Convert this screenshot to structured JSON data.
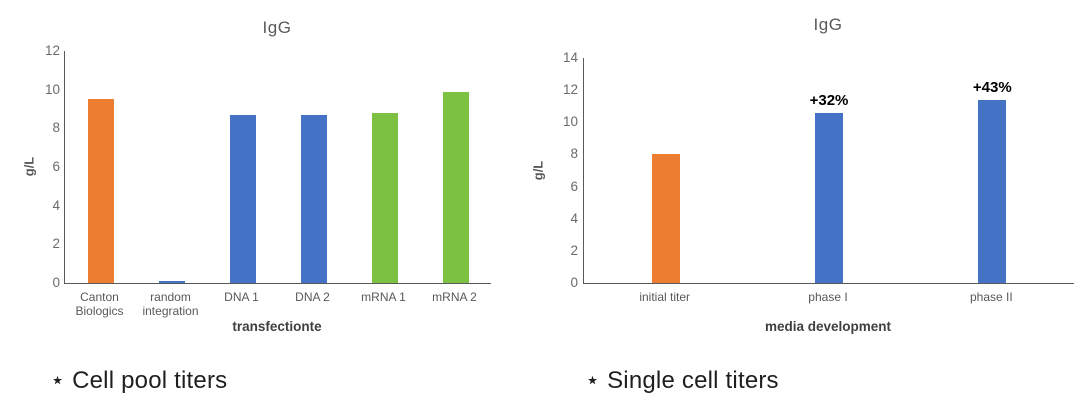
{
  "page": {
    "background": "#ffffff"
  },
  "colors": {
    "axis": "#595959",
    "tick_label": "#6b6b6b",
    "chart_title": "#595959",
    "axis_title": "#3f3f3f",
    "annotation": "#000000",
    "caption": "#1f1f1f",
    "orange": "#ED7D31",
    "blue": "#4472C4",
    "green": "#7CC142"
  },
  "chart_data": [
    {
      "type": "bar",
      "title": "IgG",
      "xlabel": "transfectionte",
      "ylabel": "g/L",
      "caption": "⋆ Cell pool titers",
      "categories": [
        "Canton Biologics",
        "random integration",
        "DNA 1",
        "DNA 2",
        "mRNA 1",
        "mRNA 2"
      ],
      "values": [
        9.5,
        0.1,
        8.7,
        8.7,
        8.8,
        9.9
      ],
      "bar_colors": [
        "#ED7D31",
        "#4472C4",
        "#4472C4",
        "#4472C4",
        "#7CC142",
        "#7CC142"
      ],
      "annotations": [
        "",
        "",
        "",
        "",
        "",
        ""
      ],
      "ylim": [
        0,
        12
      ],
      "yticks": [
        0,
        2,
        4,
        6,
        8,
        10,
        12
      ],
      "grid": false,
      "legend": false
    },
    {
      "type": "bar",
      "title": "IgG",
      "xlabel": "media development",
      "ylabel": "g/L",
      "caption": "⋆ Single cell titers",
      "categories": [
        "initial titer",
        "phase I",
        "phase II"
      ],
      "values": [
        8,
        10.6,
        11.4
      ],
      "bar_colors": [
        "#ED7D31",
        "#4472C4",
        "#4472C4"
      ],
      "annotations": [
        "",
        "+32%",
        "+43%"
      ],
      "ylim": [
        0,
        14
      ],
      "yticks": [
        0,
        2,
        4,
        6,
        8,
        10,
        12,
        14
      ],
      "grid": false,
      "legend": false
    }
  ]
}
